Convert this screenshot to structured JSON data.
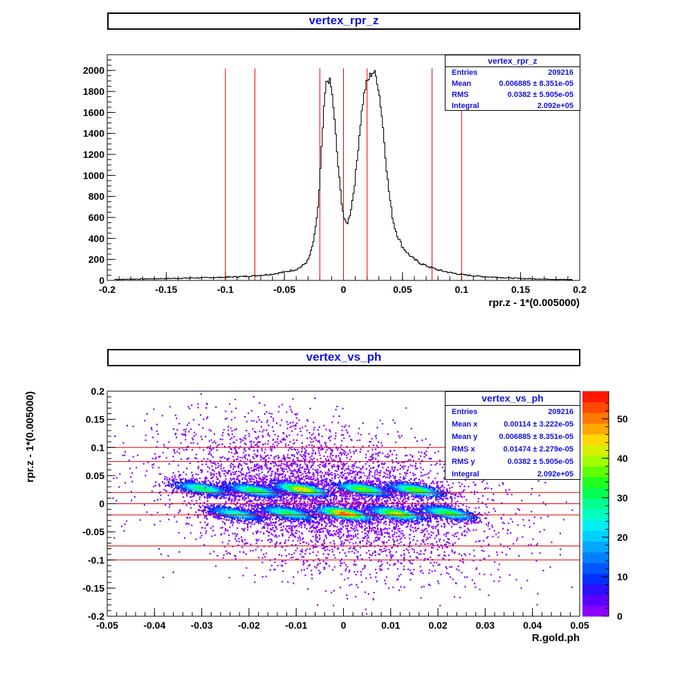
{
  "top": {
    "title": "vertex_rpr_z",
    "xlabel": "rpr.z - 1*(0.005000)",
    "stats": {
      "name": "vertex_rpr_z",
      "rows": [
        {
          "label": "Entries",
          "value": "209216"
        },
        {
          "label": "Mean",
          "value": "0.006885 ± 8.351e-05"
        },
        {
          "label": "RMS",
          "value": "0.0382 ± 5.905e-05"
        },
        {
          "label": "Integral",
          "value": "2.092e+05"
        }
      ]
    }
  },
  "bottom": {
    "title": "vertex_vs_ph",
    "xlabel": "R.gold.ph",
    "ylabel": "rpr.z - 1*(0.005000)",
    "stats": {
      "name": "vertex_vs_ph",
      "rows": [
        {
          "label": "Entries",
          "value": "209216"
        },
        {
          "label": "Mean x",
          "value": "0.00114 ± 3.222e-05"
        },
        {
          "label": "Mean y",
          "value": "0.006885 ± 8.351e-05"
        },
        {
          "label": "RMS x",
          "value": "0.01474 ± 2.279e-05"
        },
        {
          "label": "RMS y",
          "value": "0.0382 ± 5.905e-05"
        },
        {
          "label": "Integral",
          "value": "2.092e+05"
        }
      ]
    }
  },
  "chart_data": [
    {
      "type": "line",
      "subtype": "histogram",
      "title": "vertex_rpr_z",
      "xlabel": "rpr.z - 1*(0.005000)",
      "ylabel": "",
      "xlim": [
        -0.2,
        0.2
      ],
      "ylim": [
        0,
        2150
      ],
      "x_ticks": [
        -0.2,
        -0.15,
        -0.1,
        -0.05,
        0,
        0.05,
        0.1,
        0.15,
        0.2
      ],
      "y_ticks": [
        0,
        200,
        400,
        600,
        800,
        1000,
        1200,
        1400,
        1600,
        1800,
        2000
      ],
      "series_color": "#000000",
      "x": [
        -0.19,
        -0.15,
        -0.12,
        -0.1,
        -0.08,
        -0.06,
        -0.05,
        -0.04,
        -0.035,
        -0.03,
        -0.027,
        -0.024,
        -0.021,
        -0.019,
        -0.017,
        -0.015,
        -0.013,
        -0.011,
        -0.009,
        -0.007,
        -0.005,
        -0.003,
        -0.001,
        0.001,
        0.003,
        0.005,
        0.007,
        0.009,
        0.011,
        0.013,
        0.015,
        0.017,
        0.019,
        0.021,
        0.023,
        0.025,
        0.027,
        0.029,
        0.031,
        0.033,
        0.035,
        0.037,
        0.039,
        0.041,
        0.043,
        0.046,
        0.05,
        0.055,
        0.06,
        0.065,
        0.07,
        0.08,
        0.09,
        0.1,
        0.12,
        0.15,
        0.19
      ],
      "values": [
        10,
        18,
        25,
        30,
        40,
        60,
        80,
        105,
        135,
        190,
        290,
        450,
        750,
        1150,
        1550,
        1850,
        1920,
        1880,
        1720,
        1450,
        1150,
        900,
        700,
        560,
        540,
        600,
        720,
        880,
        1080,
        1330,
        1560,
        1740,
        1860,
        1910,
        1960,
        1990,
        1960,
        1880,
        1720,
        1520,
        1260,
        1000,
        800,
        640,
        520,
        420,
        320,
        250,
        200,
        165,
        140,
        100,
        75,
        55,
        35,
        18,
        8
      ],
      "cut_lines": [
        -0.1,
        -0.075,
        -0.02,
        0,
        0.02,
        0.075,
        0.1
      ],
      "cut_line_color": "#e00000"
    },
    {
      "type": "heatmap",
      "title": "vertex_vs_ph",
      "xlabel": "R.gold.ph",
      "ylabel": "rpr.z - 1*(0.005000)",
      "xlim": [
        -0.05,
        0.05
      ],
      "ylim": [
        -0.2,
        0.2
      ],
      "x_ticks": [
        -0.05,
        -0.04,
        -0.03,
        -0.02,
        -0.01,
        0,
        0.01,
        0.02,
        0.03,
        0.04,
        0.05
      ],
      "y_ticks": [
        -0.2,
        -0.15,
        -0.1,
        -0.05,
        0,
        0.05,
        0.1,
        0.15,
        0.2
      ],
      "zlim": [
        0,
        57
      ],
      "z_ticks": [
        0,
        10,
        20,
        30,
        40,
        50
      ],
      "palette": [
        "#8b00ff",
        "#5c00ff",
        "#2a10ff",
        "#0030ff",
        "#0058ff",
        "#0080ff",
        "#00a8ff",
        "#00d0ff",
        "#00f0f0",
        "#00ffc0",
        "#00ff90",
        "#00ff50",
        "#20ff20",
        "#60ff00",
        "#a0ff00",
        "#d8f000",
        "#ffd800",
        "#ffa800",
        "#ff7800",
        "#ff4800",
        "#ff1800"
      ],
      "clusters": [
        {
          "x": -0.03,
          "y": 0.028,
          "peak": 30
        },
        {
          "x": -0.019,
          "y": 0.025,
          "peak": 32
        },
        {
          "x": -0.009,
          "y": 0.027,
          "peak": 44
        },
        {
          "x": 0.004,
          "y": 0.027,
          "peak": 36
        },
        {
          "x": 0.015,
          "y": 0.026,
          "peak": 35
        },
        {
          "x": -0.023,
          "y": -0.016,
          "peak": 25
        },
        {
          "x": -0.012,
          "y": -0.015,
          "peak": 30
        },
        {
          "x": 0.0,
          "y": -0.016,
          "peak": 50
        },
        {
          "x": 0.011,
          "y": -0.016,
          "peak": 40
        },
        {
          "x": 0.022,
          "y": -0.015,
          "peak": 33
        }
      ],
      "cut_lines": [
        -0.1,
        -0.075,
        -0.02,
        0,
        0.02,
        0.075,
        0.1
      ],
      "cut_line_color": "#e00000"
    }
  ]
}
